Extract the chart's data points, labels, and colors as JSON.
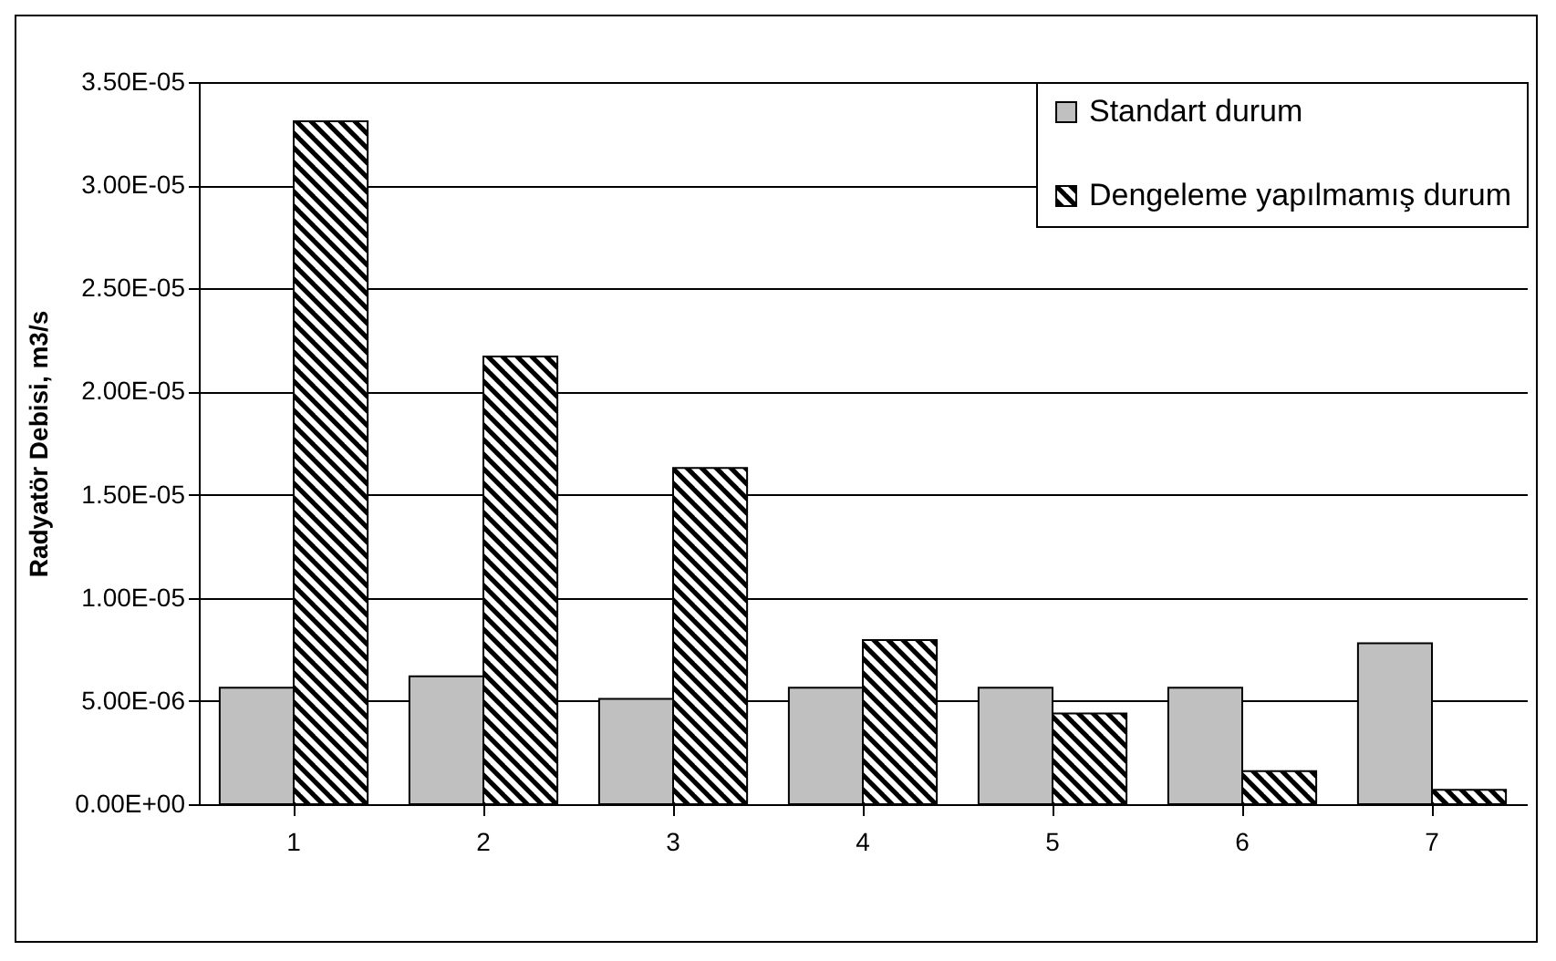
{
  "chart_data": {
    "type": "bar",
    "ylabel": "Radyatör Debisi, m3/s",
    "categories": [
      "1",
      "2",
      "3",
      "4",
      "5",
      "6",
      "7"
    ],
    "series": [
      {
        "name": "Standart durum",
        "color": "#c0c0c0",
        "values": [
          5.65e-06,
          6.2e-06,
          5.1e-06,
          5.65e-06,
          5.65e-06,
          5.65e-06,
          7.8e-06
        ]
      },
      {
        "name": "Dengeleme yapılmamış durum",
        "color": "#000000",
        "values": [
          3.31e-05,
          2.17e-05,
          1.63e-05,
          7.95e-06,
          4.4e-06,
          1.6e-06,
          7e-07
        ]
      }
    ],
    "ylim": [
      0,
      3.5e-05
    ],
    "yticks": [
      {
        "value": 0,
        "label": "0.00E+00"
      },
      {
        "value": 5e-06,
        "label": "5.00E-06"
      },
      {
        "value": 1e-05,
        "label": "1.00E-05"
      },
      {
        "value": 1.5e-05,
        "label": "1.50E-05"
      },
      {
        "value": 2e-05,
        "label": "2.00E-05"
      },
      {
        "value": 2.5e-05,
        "label": "2.50E-05"
      },
      {
        "value": 3e-05,
        "label": "3.00E-05"
      },
      {
        "value": 3.5e-05,
        "label": "3.50E-05"
      }
    ],
    "grid": "y",
    "legend": "top right"
  }
}
